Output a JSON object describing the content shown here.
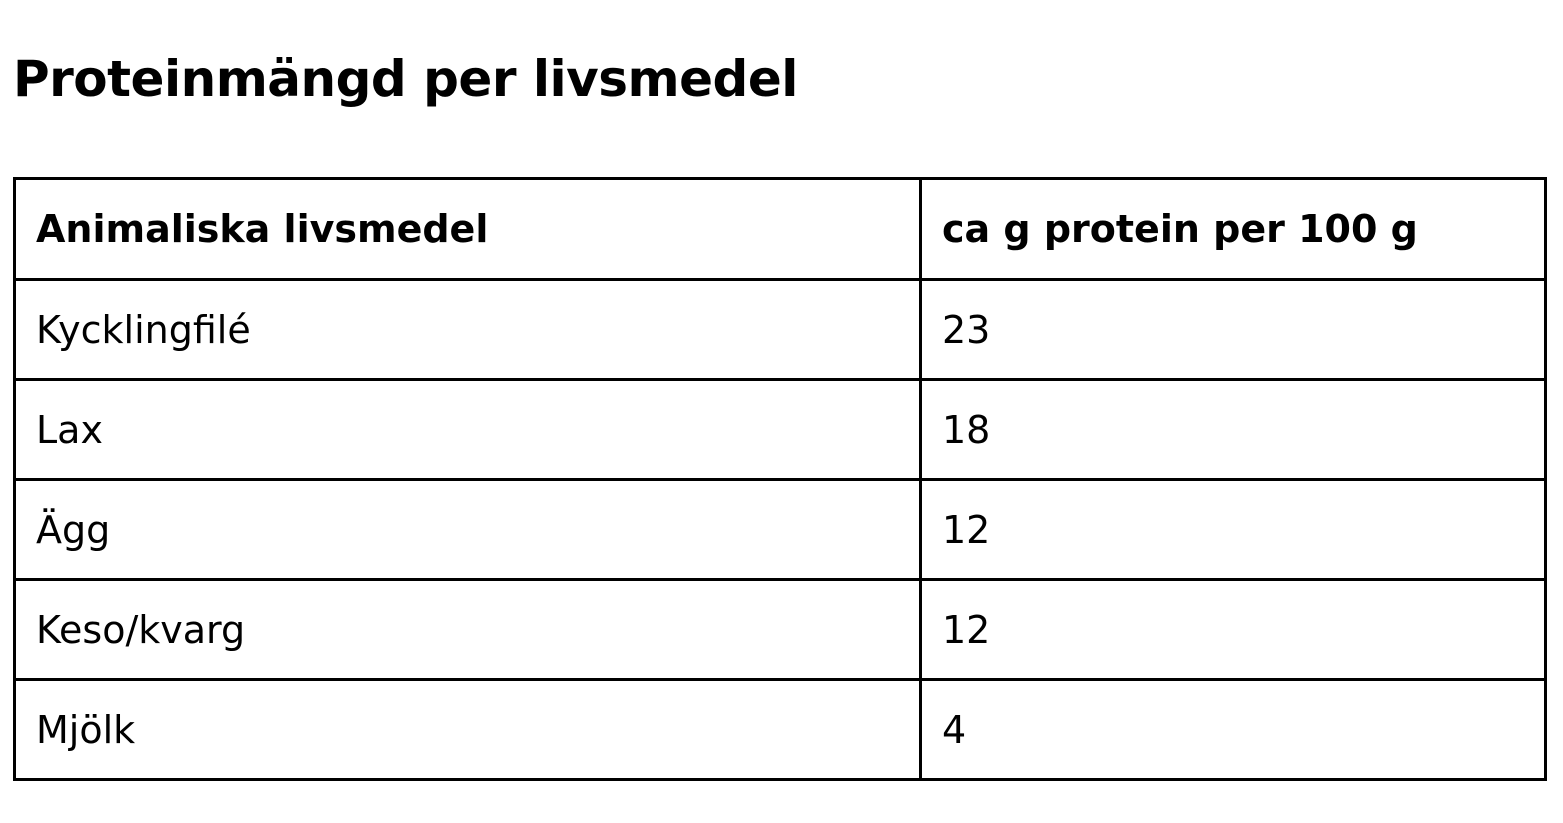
{
  "title": "Proteinmängd per livsmedel",
  "table": {
    "headers": [
      "Animaliska livsmedel",
      "ca g protein per 100 g"
    ],
    "rows": [
      [
        "Kycklingfilé",
        "23"
      ],
      [
        "Lax",
        "18"
      ],
      [
        "Ägg",
        "12"
      ],
      [
        "Keso/kvarg",
        "12"
      ],
      [
        "Mjölk",
        "4"
      ]
    ]
  }
}
